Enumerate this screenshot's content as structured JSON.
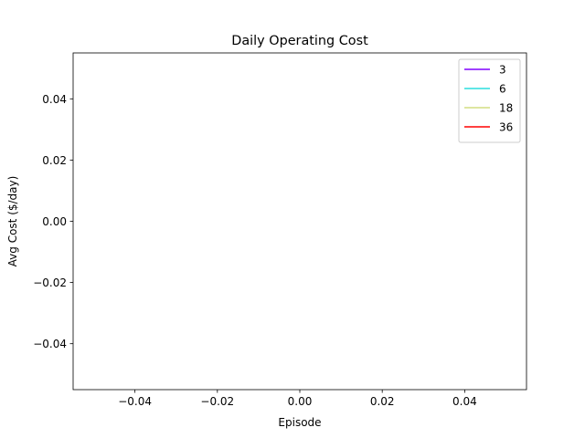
{
  "chart_data": {
    "type": "line",
    "title": "Daily Operating Cost",
    "xlabel": "Episode",
    "ylabel": "Avg Cost ($/day)",
    "xlim": [
      -0.055,
      0.055
    ],
    "ylim": [
      -0.055,
      0.055
    ],
    "xticks": [
      -0.04,
      -0.02,
      0.0,
      0.02,
      0.04
    ],
    "xtick_labels": [
      "−0.04",
      "−0.02",
      "0.00",
      "0.02",
      "0.04"
    ],
    "yticks": [
      -0.04,
      -0.02,
      0.0,
      0.02,
      0.04
    ],
    "ytick_labels": [
      "−0.04",
      "−0.02",
      "0.00",
      "0.02",
      "0.04"
    ],
    "grid": false,
    "legend_position": "top-right",
    "series": [
      {
        "name": "3",
        "color": "#8000ff",
        "x": [],
        "y": []
      },
      {
        "name": "6",
        "color": "#2adddd",
        "x": [],
        "y": []
      },
      {
        "name": "18",
        "color": "#d4dd80",
        "x": [],
        "y": []
      },
      {
        "name": "36",
        "color": "#ff0000",
        "x": [],
        "y": []
      }
    ]
  }
}
